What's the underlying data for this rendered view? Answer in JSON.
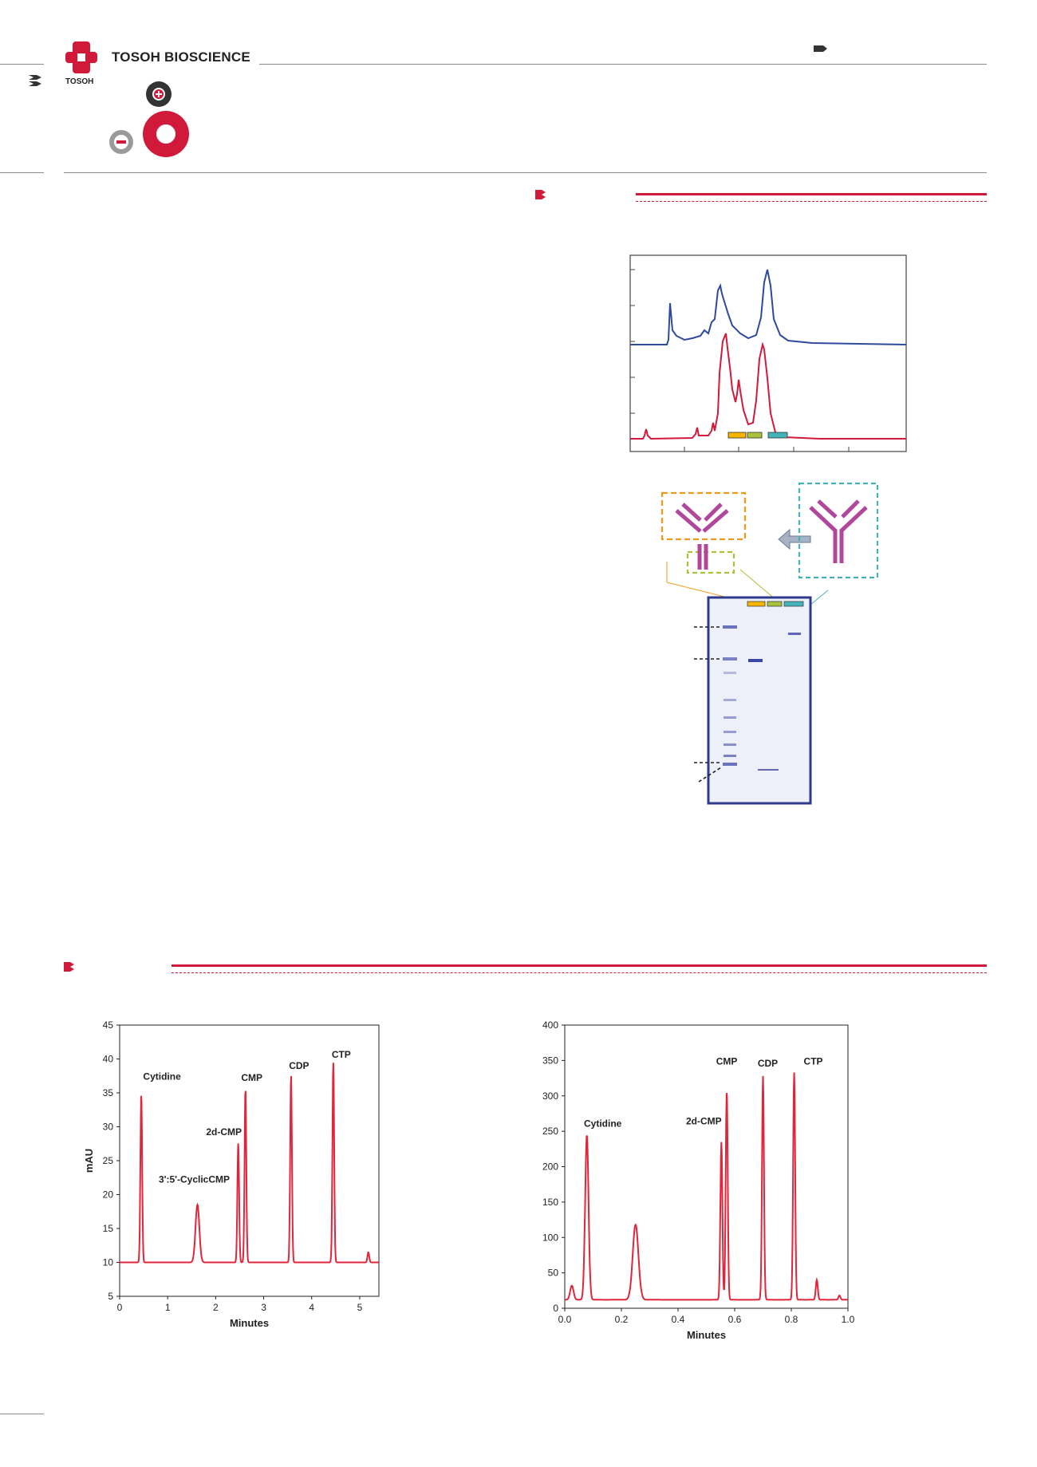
{
  "header": {
    "brand": "TOSOH BIOSCIENCE",
    "logo_text": "TOSOH",
    "colors": {
      "accent_red": "#d11a3a",
      "blue_trace": "#2e4a9e",
      "purple_antibody": "#b0479a"
    }
  },
  "chart_left": {
    "type": "line",
    "xlabel": "Minutes",
    "ylabel": "mAU",
    "xlim": [
      0,
      5.4
    ],
    "ylim": [
      5,
      45
    ],
    "x_ticks": [
      "0",
      "1",
      "2",
      "3",
      "4",
      "5"
    ],
    "y_ticks": [
      "5",
      "10",
      "15",
      "20",
      "25",
      "30",
      "35",
      "40",
      "45"
    ],
    "peaks": [
      {
        "name": "Cytidine",
        "x": 0.45,
        "y": 34.8
      },
      {
        "name": "3':5'-CyclicCMP",
        "x": 1.62,
        "y": 18.5
      },
      {
        "name": "2d-CMP",
        "x": 2.47,
        "y": 27.6
      },
      {
        "name": "CMP",
        "x": 2.62,
        "y": 35.6
      },
      {
        "name": "CDP",
        "x": 3.57,
        "y": 37.6
      },
      {
        "name": "CTP",
        "x": 4.45,
        "y": 39.5
      }
    ]
  },
  "chart_right": {
    "type": "line",
    "xlabel": "Minutes",
    "xlim": [
      0,
      1.0
    ],
    "ylim": [
      0,
      400
    ],
    "x_ticks": [
      "0.0",
      "0.2",
      "0.4",
      "0.6",
      "0.8",
      "1.0"
    ],
    "y_ticks": [
      "0",
      "50",
      "100",
      "150",
      "200",
      "250",
      "300",
      "350",
      "400"
    ],
    "peaks": [
      {
        "name": "Cytidine",
        "x": 0.078,
        "y": 245
      },
      {
        "name": "",
        "x": 0.25,
        "y": 118
      },
      {
        "name": "2d-CMP",
        "x": 0.553,
        "y": 235
      },
      {
        "name": "CMP",
        "x": 0.572,
        "y": 308
      },
      {
        "name": "CDP",
        "x": 0.7,
        "y": 328
      },
      {
        "name": "CTP",
        "x": 0.81,
        "y": 333
      }
    ]
  }
}
